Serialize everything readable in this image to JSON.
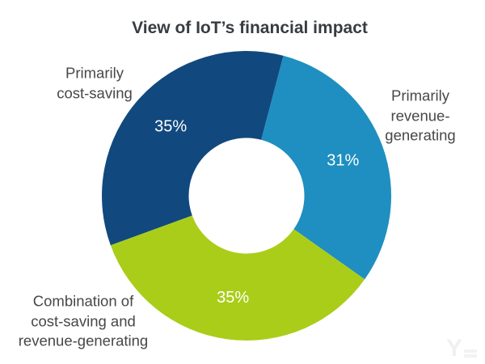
{
  "title": "View of IoT’s financial impact",
  "chart_data": {
    "type": "pie",
    "subtype": "donut",
    "title": "View of IoT’s financial impact",
    "slices": [
      {
        "label": "Primarily cost-saving",
        "value_pct": 35,
        "pct_label": "35%",
        "color": "#11497E"
      },
      {
        "label": "Primarily revenue-generating",
        "value_pct": 31,
        "pct_label": "31%",
        "color": "#1E8FC0"
      },
      {
        "label": "Combination of cost-saving and revenue-generating",
        "value_pct": 35,
        "pct_label": "35%",
        "color": "#AACD19"
      }
    ],
    "start_angle_deg": 250,
    "direction": "clockwise",
    "donut_hole_ratio": 0.4,
    "legend_position": "labels around donut",
    "data_labels": "percent inside slices, white"
  },
  "labels": {
    "cost_saving": "Primarily\ncost-saving",
    "revenue": "Primarily\nrevenue-\ngenerating",
    "combination": "Combination of\ncost-saving and\nrevenue-generating"
  },
  "colors": {
    "dark_blue": "#11497E",
    "cyan_blue": "#1E8FC0",
    "yellow_green": "#AACD19",
    "title_text": "#383c42",
    "label_text": "#474747",
    "pct_text": "#ffffff",
    "background": "#ffffff"
  },
  "watermark": {
    "symbol": "Y"
  }
}
